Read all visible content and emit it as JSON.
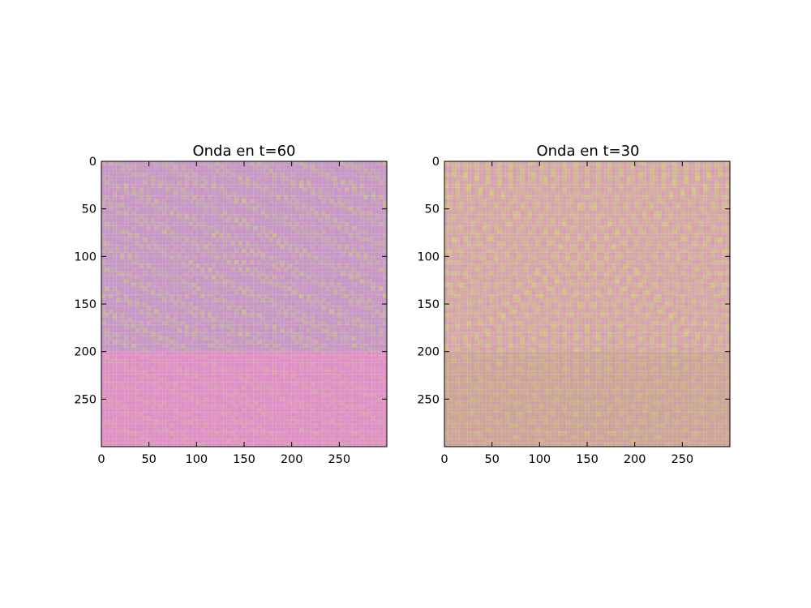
{
  "chart_data": [
    {
      "type": "heatmap",
      "title": "Onda en t=60",
      "xlim": [
        0,
        300
      ],
      "ylim": [
        300,
        0
      ],
      "x_ticks": [
        "0",
        "50",
        "100",
        "150",
        "200",
        "250"
      ],
      "y_ticks": [
        "0",
        "50",
        "100",
        "150",
        "200",
        "250"
      ],
      "x_tick_values": [
        0,
        50,
        100,
        150,
        200,
        250
      ],
      "y_tick_values": [
        0,
        50,
        100,
        150,
        200,
        250
      ],
      "medium_boundary_row": 200,
      "grid": false,
      "colors": {
        "upper_region_base": "#c49ac6",
        "lower_region_base": "#df91c7",
        "fringe_light": "#cbd06a",
        "fringe_dark": "#e184c4"
      }
    },
    {
      "type": "heatmap",
      "title": "Onda en t=30",
      "xlim": [
        0,
        300
      ],
      "ylim": [
        300,
        0
      ],
      "x_ticks": [
        "0",
        "50",
        "100",
        "150",
        "200",
        "250"
      ],
      "y_ticks": [
        "0",
        "50",
        "100",
        "150",
        "200",
        "250"
      ],
      "x_tick_values": [
        0,
        50,
        100,
        150,
        200,
        250
      ],
      "y_tick_values": [
        0,
        50,
        100,
        150,
        200,
        250
      ],
      "medium_boundary_row": 200,
      "grid": false,
      "colors": {
        "upper_region_base": "#d4a9a6",
        "lower_region_base": "#cca596",
        "fringe_light": "#cfd66a",
        "fringe_dark": "#dc8fc6"
      }
    }
  ]
}
